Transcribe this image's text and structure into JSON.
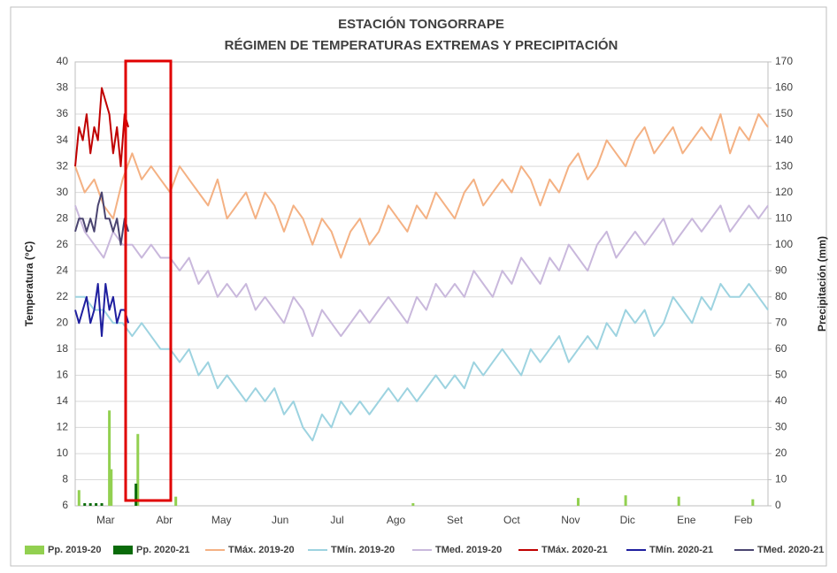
{
  "chart_data": {
    "type": "line",
    "title": "ESTACIÓN TONGORRAPE",
    "subtitle": "RÉGIMEN DE TEMPERATURAS EXTREMAS Y PRECIPITACIÓN",
    "y_label": "Temperatura (°C)",
    "y2_label": "Precipitación (mm)",
    "xlim": [
      0,
      365
    ],
    "xticks": [
      {
        "value": 16,
        "label": "Mar"
      },
      {
        "value": 47,
        "label": "Abr"
      },
      {
        "value": 77,
        "label": "May"
      },
      {
        "value": 108,
        "label": "Jun"
      },
      {
        "value": 138,
        "label": "Jul"
      },
      {
        "value": 169,
        "label": "Ago"
      },
      {
        "value": 200,
        "label": "Set"
      },
      {
        "value": 230,
        "label": "Oct"
      },
      {
        "value": 261,
        "label": "Nov"
      },
      {
        "value": 291,
        "label": "Dic"
      },
      {
        "value": 322,
        "label": "Ene"
      },
      {
        "value": 352,
        "label": "Feb"
      }
    ],
    "ylim": [
      6,
      40
    ],
    "yticks": [
      6,
      8,
      10,
      12,
      14,
      16,
      18,
      20,
      22,
      24,
      26,
      28,
      30,
      32,
      34,
      36,
      38,
      40
    ],
    "y2lim": [
      0,
      170
    ],
    "y2ticks": [
      0,
      10,
      20,
      30,
      40,
      50,
      60,
      70,
      80,
      90,
      100,
      110,
      120,
      130,
      140,
      150,
      160,
      170
    ],
    "grid": true,
    "legend": "bottom",
    "series": [
      {
        "name": "Pp. 2019-20",
        "type": "bar",
        "axis": "y2",
        "color": "#92d050",
        "x": [
          2,
          18,
          19,
          33,
          53,
          178,
          265,
          290,
          318,
          357
        ],
        "values": [
          6,
          36.5,
          14,
          27.5,
          3.5,
          1,
          3,
          4,
          3.5,
          2.5
        ]
      },
      {
        "name": "Pp. 2020-21",
        "type": "bar",
        "axis": "y2",
        "color": "#0a6b0a",
        "x": [
          5,
          8,
          11,
          14,
          32
        ],
        "values": [
          1,
          1,
          1,
          1,
          8.5
        ]
      },
      {
        "name": "TMáx. 2019-20",
        "type": "line",
        "color": "#f4b183",
        "x": [
          0,
          5,
          10,
          15,
          20,
          25,
          30,
          35,
          40,
          45,
          50,
          55,
          60,
          65,
          70,
          75,
          80,
          85,
          90,
          95,
          100,
          105,
          110,
          115,
          120,
          125,
          130,
          135,
          140,
          145,
          150,
          155,
          160,
          165,
          170,
          175,
          180,
          185,
          190,
          195,
          200,
          205,
          210,
          215,
          220,
          225,
          230,
          235,
          240,
          245,
          250,
          255,
          260,
          265,
          270,
          275,
          280,
          285,
          290,
          295,
          300,
          305,
          310,
          315,
          320,
          325,
          330,
          335,
          340,
          345,
          350,
          355,
          360,
          365
        ],
        "values": [
          32,
          30,
          31,
          29,
          28,
          31,
          33,
          31,
          32,
          31,
          30,
          32,
          31,
          30,
          29,
          31,
          28,
          29,
          30,
          28,
          30,
          29,
          27,
          29,
          28,
          26,
          28,
          27,
          25,
          27,
          28,
          26,
          27,
          29,
          28,
          27,
          29,
          28,
          30,
          29,
          28,
          30,
          31,
          29,
          30,
          31,
          30,
          32,
          31,
          29,
          31,
          30,
          32,
          33,
          31,
          32,
          34,
          33,
          32,
          34,
          35,
          33,
          34,
          35,
          33,
          34,
          35,
          34,
          36,
          33,
          35,
          34,
          36,
          35
        ]
      },
      {
        "name": "TMín. 2019-20",
        "type": "line",
        "color": "#9dd3e0",
        "x": [
          0,
          5,
          10,
          15,
          20,
          25,
          30,
          35,
          40,
          45,
          50,
          55,
          60,
          65,
          70,
          75,
          80,
          85,
          90,
          95,
          100,
          105,
          110,
          115,
          120,
          125,
          130,
          135,
          140,
          145,
          150,
          155,
          160,
          165,
          170,
          175,
          180,
          185,
          190,
          195,
          200,
          205,
          210,
          215,
          220,
          225,
          230,
          235,
          240,
          245,
          250,
          255,
          260,
          265,
          270,
          275,
          280,
          285,
          290,
          295,
          300,
          305,
          310,
          315,
          320,
          325,
          330,
          335,
          340,
          345,
          350,
          355,
          360,
          365
        ],
        "values": [
          22,
          22,
          21,
          21,
          20,
          20,
          19,
          20,
          19,
          18,
          18,
          17,
          18,
          16,
          17,
          15,
          16,
          15,
          14,
          15,
          14,
          15,
          13,
          14,
          12,
          11,
          13,
          12,
          14,
          13,
          14,
          13,
          14,
          15,
          14,
          15,
          14,
          15,
          16,
          15,
          16,
          15,
          17,
          16,
          17,
          18,
          17,
          16,
          18,
          17,
          18,
          19,
          17,
          18,
          19,
          18,
          20,
          19,
          21,
          20,
          21,
          19,
          20,
          22,
          21,
          20,
          22,
          21,
          23,
          22,
          22,
          23,
          22,
          21
        ]
      },
      {
        "name": "TMed. 2019-20",
        "type": "line",
        "color": "#c9b8dc",
        "x": [
          0,
          5,
          10,
          15,
          20,
          25,
          30,
          35,
          40,
          45,
          50,
          55,
          60,
          65,
          70,
          75,
          80,
          85,
          90,
          95,
          100,
          105,
          110,
          115,
          120,
          125,
          130,
          135,
          140,
          145,
          150,
          155,
          160,
          165,
          170,
          175,
          180,
          185,
          190,
          195,
          200,
          205,
          210,
          215,
          220,
          225,
          230,
          235,
          240,
          245,
          250,
          255,
          260,
          265,
          270,
          275,
          280,
          285,
          290,
          295,
          300,
          305,
          310,
          315,
          320,
          325,
          330,
          335,
          340,
          345,
          350,
          355,
          360,
          365
        ],
        "values": [
          29,
          27,
          26,
          25,
          27,
          26,
          26,
          25,
          26,
          25,
          25,
          24,
          25,
          23,
          24,
          22,
          23,
          22,
          23,
          21,
          22,
          21,
          20,
          22,
          21,
          19,
          21,
          20,
          19,
          20,
          21,
          20,
          21,
          22,
          21,
          20,
          22,
          21,
          23,
          22,
          23,
          22,
          24,
          23,
          22,
          24,
          23,
          25,
          24,
          23,
          25,
          24,
          26,
          25,
          24,
          26,
          27,
          25,
          26,
          27,
          26,
          27,
          28,
          26,
          27,
          28,
          27,
          28,
          29,
          27,
          28,
          29,
          28,
          29
        ]
      },
      {
        "name": "TMáx. 2020-21",
        "type": "line",
        "color": "#c00000",
        "x": [
          0,
          2,
          4,
          6,
          8,
          10,
          12,
          14,
          16,
          18,
          20,
          22,
          24,
          26,
          28
        ],
        "values": [
          32,
          35,
          34,
          36,
          33,
          35,
          34,
          38,
          37,
          36,
          33,
          35,
          32,
          36,
          35
        ]
      },
      {
        "name": "TMín. 2020-21",
        "type": "line",
        "color": "#1f1f9f",
        "x": [
          0,
          2,
          4,
          6,
          8,
          10,
          12,
          14,
          16,
          18,
          20,
          22,
          24,
          26,
          28
        ],
        "values": [
          21,
          20,
          21,
          22,
          20,
          21,
          23,
          19,
          23,
          21,
          22,
          20,
          21,
          21,
          20
        ]
      },
      {
        "name": "TMed. 2020-21",
        "type": "line",
        "color": "#4a4470",
        "x": [
          0,
          2,
          4,
          6,
          8,
          10,
          12,
          14,
          16,
          18,
          20,
          22,
          24,
          26,
          28
        ],
        "values": [
          27,
          28,
          28,
          27,
          28,
          27,
          29,
          30,
          28,
          28,
          27,
          28,
          26,
          28,
          27
        ]
      }
    ]
  }
}
